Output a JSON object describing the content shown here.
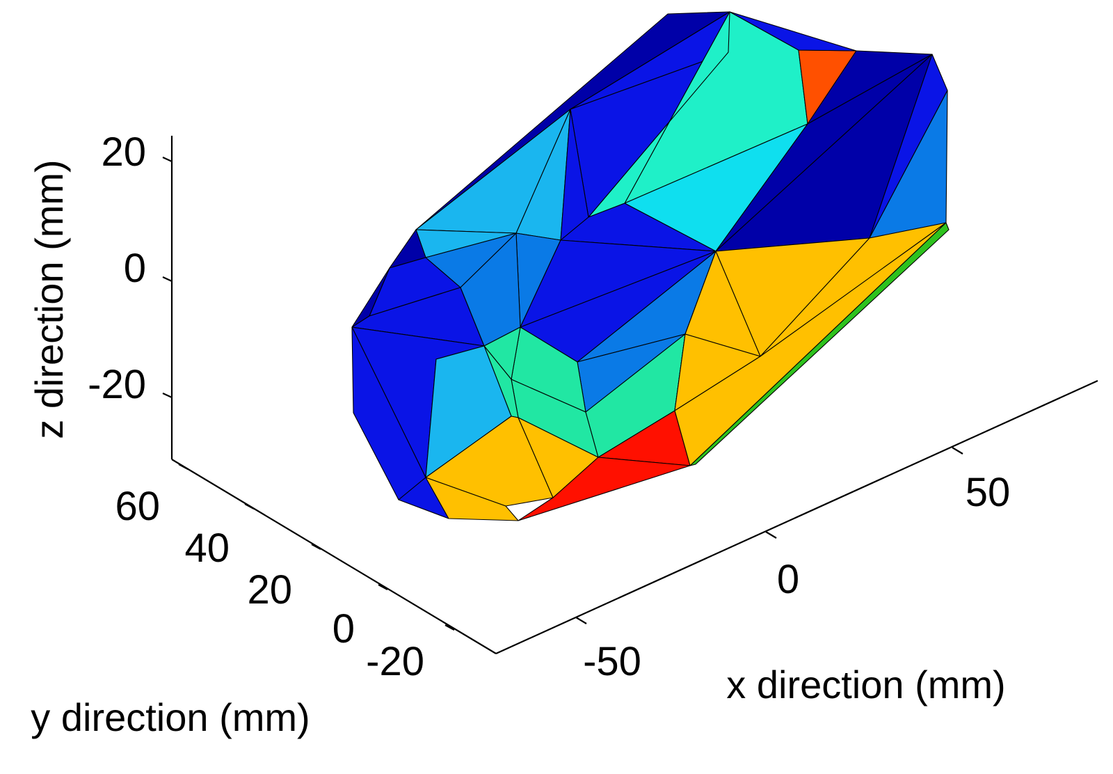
{
  "chart_data": {
    "type": "surface",
    "xlabel": "x direction (mm)",
    "ylabel": "y direction (mm)",
    "zlabel": "z direction (mm)",
    "x_ticks": [
      "-50",
      "0",
      "50"
    ],
    "y_ticks": [
      "-20",
      "0",
      "20",
      "40",
      "60"
    ],
    "z_ticks": [
      "-20",
      "0",
      "20"
    ],
    "grid": false,
    "colormap": "jet",
    "colors": {
      "navy": "#0000a8",
      "blue": "#0a14e6",
      "mid_blue": "#0a7ae6",
      "sky": "#1ab6ef",
      "cyan": "#0fdfef",
      "aqua": "#1ff0c8",
      "teal": "#21e7a3",
      "amber": "#ffc000",
      "orange": "#ff5000",
      "red": "#ff1000",
      "green": "#2ec21e"
    }
  }
}
